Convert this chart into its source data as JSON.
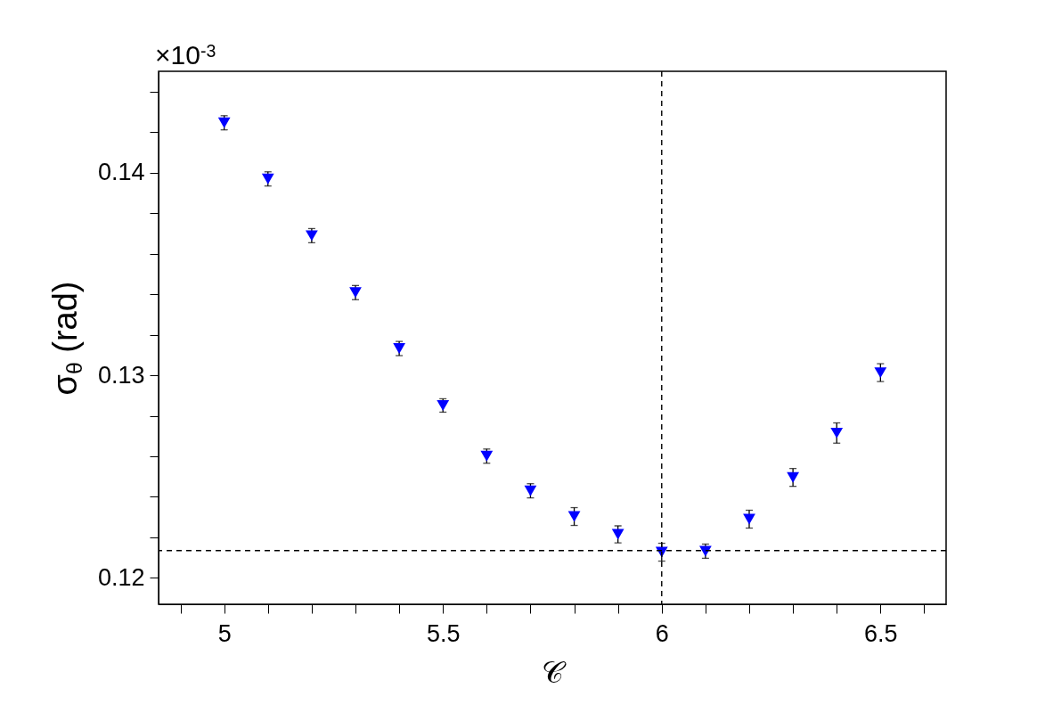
{
  "chart_data": {
    "type": "scatter",
    "xlabel": "𝒞",
    "ylabel": "σ$_{θ}$ (rad)",
    "marker": "triangle",
    "annotations": [
      "×10$^{-3}$"
    ],
    "x": [
      5.0,
      5.1,
      5.2,
      5.3,
      5.4,
      5.5,
      5.6,
      5.7,
      5.8,
      5.9,
      6.0,
      6.1,
      6.2,
      6.3,
      6.4,
      6.5
    ],
    "series": [
      {
        "color": "#0000ff",
        "values": [
          0.14246,
          0.13969,
          0.13689,
          0.13408,
          0.13132,
          0.12851,
          0.12601,
          0.1243,
          0.12303,
          0.12215,
          0.12127,
          0.12132,
          0.1229,
          0.12496,
          0.12715,
          0.13013
        ],
        "errors": [
          0.00035,
          0.00035,
          0.00035,
          0.00035,
          0.00035,
          0.00033,
          0.00035,
          0.00035,
          0.00044,
          0.00042,
          0.00044,
          0.00035,
          0.00044,
          0.00044,
          0.0005,
          0.00044
        ]
      }
    ],
    "xlim": [
      4.85,
      6.65
    ],
    "ylim": [
      0.1187,
      0.145
    ],
    "xticks": [
      {
        "value": 4.9,
        "label": null
      },
      5,
      {
        "value": 5.1,
        "label": null
      },
      {
        "value": 5.2,
        "label": null
      },
      {
        "value": 5.3,
        "label": null
      },
      {
        "value": 5.4,
        "label": null
      },
      5.5,
      {
        "value": 5.6,
        "label": null
      },
      {
        "value": 5.7,
        "label": null
      },
      {
        "value": 5.8,
        "label": null
      },
      {
        "value": 5.9,
        "label": null
      },
      6,
      {
        "value": 6.1,
        "label": null
      },
      {
        "value": 6.2,
        "label": null
      },
      {
        "value": 6.3,
        "label": null
      },
      {
        "value": 6.4,
        "label": null
      },
      6.5,
      {
        "value": 6.6,
        "label": null
      }
    ],
    "yticks": [
      0.12,
      {
        "value": 0.122,
        "label": null
      },
      {
        "value": 0.124,
        "label": null
      },
      {
        "value": 0.126,
        "label": null
      },
      {
        "value": 0.128,
        "label": null
      },
      0.13,
      {
        "value": 0.132,
        "label": null
      },
      {
        "value": 0.134,
        "label": null
      },
      {
        "value": 0.136,
        "label": null
      },
      {
        "value": 0.138,
        "label": null
      },
      0.14,
      {
        "value": 0.142,
        "label": null
      },
      {
        "value": 0.144,
        "label": null
      }
    ],
    "ref_lines": [
      {
        "axis": "x",
        "value": 6,
        "line_style": "dashed",
        "color": "#000000"
      },
      {
        "axis": "y",
        "value": 0.12135,
        "line_style": "dashed",
        "color": "#000000"
      }
    ]
  }
}
